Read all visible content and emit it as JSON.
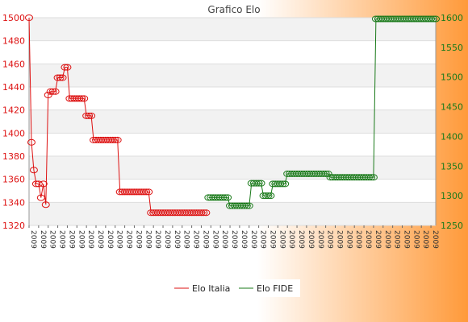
{
  "chart_data": {
    "type": "line",
    "title": "Grafico Elo",
    "xlabel": "",
    "ylabel": "",
    "legend_position": "bottom",
    "grid": true,
    "left_axis": {
      "ylim": [
        1320,
        1500
      ],
      "ticks": [
        1320,
        1340,
        1360,
        1380,
        1400,
        1420,
        1440,
        1460,
        1480,
        1500
      ],
      "color": "#dd1111"
    },
    "right_axis": {
      "ylim": [
        1250,
        1600
      ],
      "ticks": [
        1250,
        1300,
        1350,
        1400,
        1450,
        1500,
        1550,
        1600
      ],
      "color": "#1a7a1a"
    },
    "x_tick_labels_note": "overlapping rotated date labels, illegible",
    "n_points": 171,
    "series": [
      {
        "name": "Elo Italia",
        "axis": "left",
        "color": "#dd1111",
        "segments": [
          [
            0,
            1,
            1500
          ],
          [
            1,
            2,
            1392
          ],
          [
            2,
            3,
            1368
          ],
          [
            3,
            5,
            1356
          ],
          [
            5,
            6,
            1344
          ],
          [
            6,
            7,
            1356
          ],
          [
            7,
            8,
            1338
          ],
          [
            8,
            9,
            1433
          ],
          [
            9,
            12,
            1436
          ],
          [
            12,
            15,
            1448
          ],
          [
            15,
            17,
            1457
          ],
          [
            17,
            24,
            1430
          ],
          [
            24,
            27,
            1415
          ],
          [
            27,
            38,
            1394
          ],
          [
            38,
            51,
            1349
          ],
          [
            51,
            75,
            1331
          ]
        ]
      },
      {
        "name": "Elo FIDE",
        "axis": "right",
        "color": "#1a7a1a",
        "segments": [
          [
            75,
            84,
            1297
          ],
          [
            84,
            93,
            1283
          ],
          [
            93,
            98,
            1321
          ],
          [
            98,
            102,
            1300
          ],
          [
            102,
            108,
            1320
          ],
          [
            108,
            126,
            1337
          ],
          [
            126,
            145,
            1331
          ],
          [
            145,
            171,
            1598
          ]
        ]
      }
    ]
  }
}
